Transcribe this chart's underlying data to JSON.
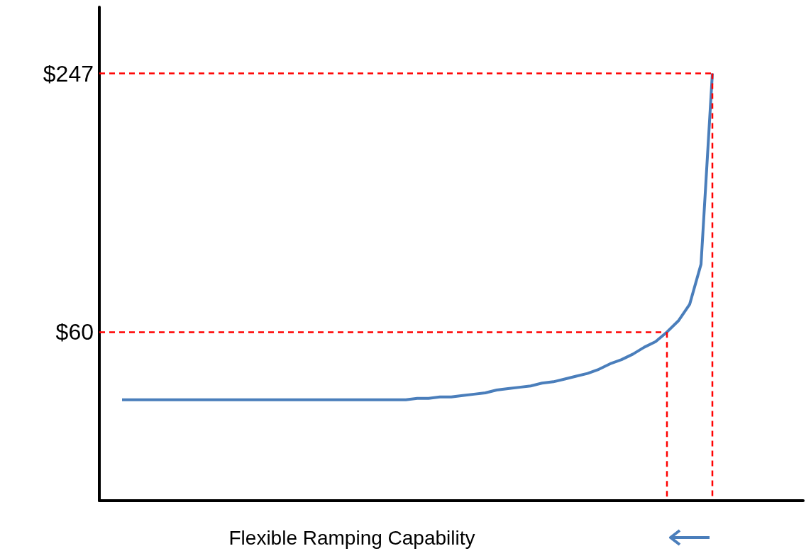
{
  "chart_data": {
    "type": "line",
    "xlabel": "Flexible Ramping Capability",
    "categories": [
      null,
      null,
      null,
      null,
      null,
      null,
      null,
      null,
      null,
      null,
      null,
      null,
      null,
      null,
      null,
      null,
      null,
      null,
      null,
      null,
      null,
      null,
      null,
      null,
      null,
      null,
      null,
      null,
      null,
      null,
      null,
      null,
      null,
      null,
      null,
      null,
      null,
      null,
      null,
      null,
      null,
      null,
      null,
      null,
      null,
      null,
      null,
      null,
      null,
      null,
      null,
      null,
      null,
      null,
      null,
      null,
      null,
      null,
      null,
      null,
      null,
      null,
      null
    ],
    "ylim": [
      -62,
      295
    ],
    "yticks": [
      {
        "value": 60,
        "label": "$60"
      },
      {
        "value": 247,
        "label": "$247"
      }
    ],
    "tick_labels": "y",
    "grid": false,
    "marker": "none",
    "line_style": "solid",
    "series": [
      {
        "color": "#4a7ebb",
        "values": [
          null,
          null,
          11,
          11,
          11,
          11,
          11,
          11,
          11,
          11,
          11,
          11,
          11,
          11,
          11,
          11,
          11,
          11,
          11,
          11,
          11,
          11,
          11,
          11,
          11,
          11,
          11,
          11,
          12,
          12,
          13,
          13,
          14,
          15,
          16,
          18,
          19,
          20,
          21,
          23,
          24,
          26,
          28,
          30,
          33,
          37,
          40,
          44,
          49,
          53,
          60,
          68,
          80,
          109,
          247,
          null,
          null,
          null,
          null,
          null,
          null,
          null,
          null
        ]
      }
    ],
    "ref_lines": [
      {
        "axis": "y",
        "value": 60,
        "color": "#ff0000",
        "line_style": "dashed"
      },
      {
        "axis": "y",
        "value": 247,
        "color": "#ff0000",
        "line_style": "dashed"
      }
    ]
  }
}
